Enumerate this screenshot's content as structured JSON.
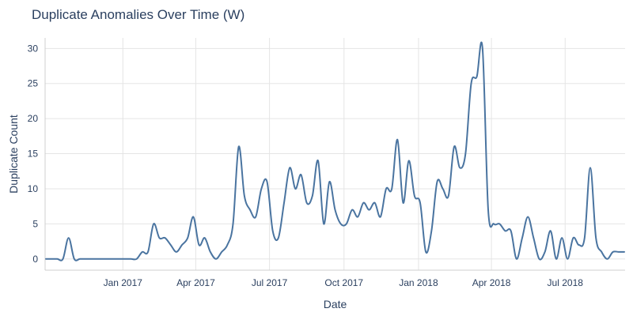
{
  "chart_data": {
    "type": "line",
    "title": "Duplicate Anomalies Over Time (W)",
    "xlabel": "Date",
    "ylabel": "Duplicate Count",
    "x_tick_labels": [
      {
        "date": "2017-01-01",
        "label": "Jan 2017"
      },
      {
        "date": "2017-04-01",
        "label": "Apr 2017"
      },
      {
        "date": "2017-07-01",
        "label": "Jul 2017"
      },
      {
        "date": "2017-10-01",
        "label": "Oct 2017"
      },
      {
        "date": "2018-01-01",
        "label": "Jan 2018"
      },
      {
        "date": "2018-04-01",
        "label": "Apr 2018"
      },
      {
        "date": "2018-07-01",
        "label": "Jul 2018"
      }
    ],
    "y_ticks": [
      0,
      5,
      10,
      15,
      20,
      25,
      30
    ],
    "xlim": [
      "2016-09-27",
      "2018-09-13"
    ],
    "ylim": [
      -1.6,
      31.5
    ],
    "grid": true,
    "series": [
      {
        "color": "#4a74a0",
        "x": [
          "2016-09-28",
          "2016-10-05",
          "2016-10-12",
          "2016-10-19",
          "2016-10-26",
          "2016-11-02",
          "2016-11-09",
          "2016-11-16",
          "2016-11-23",
          "2016-11-30",
          "2016-12-07",
          "2016-12-14",
          "2016-12-21",
          "2016-12-28",
          "2017-01-04",
          "2017-01-11",
          "2017-01-18",
          "2017-01-25",
          "2017-02-01",
          "2017-02-08",
          "2017-02-15",
          "2017-02-22",
          "2017-03-01",
          "2017-03-08",
          "2017-03-15",
          "2017-03-22",
          "2017-03-29",
          "2017-04-05",
          "2017-04-12",
          "2017-04-19",
          "2017-04-26",
          "2017-05-03",
          "2017-05-10",
          "2017-05-17",
          "2017-05-24",
          "2017-05-31",
          "2017-06-07",
          "2017-06-14",
          "2017-06-21",
          "2017-06-28",
          "2017-07-05",
          "2017-07-12",
          "2017-07-19",
          "2017-07-26",
          "2017-08-02",
          "2017-08-09",
          "2017-08-16",
          "2017-08-23",
          "2017-08-30",
          "2017-09-06",
          "2017-09-13",
          "2017-09-20",
          "2017-09-27",
          "2017-10-04",
          "2017-10-11",
          "2017-10-18",
          "2017-10-25",
          "2017-11-01",
          "2017-11-08",
          "2017-11-15",
          "2017-11-22",
          "2017-11-29",
          "2017-12-06",
          "2017-12-13",
          "2017-12-20",
          "2017-12-27",
          "2018-01-03",
          "2018-01-10",
          "2018-01-17",
          "2018-01-24",
          "2018-01-31",
          "2018-02-07",
          "2018-02-14",
          "2018-02-21",
          "2018-02-28",
          "2018-03-07",
          "2018-03-14",
          "2018-03-21",
          "2018-03-28",
          "2018-04-04",
          "2018-04-11",
          "2018-04-18",
          "2018-04-25",
          "2018-05-02",
          "2018-05-09",
          "2018-05-16",
          "2018-05-23",
          "2018-05-30",
          "2018-06-06",
          "2018-06-13",
          "2018-06-20",
          "2018-06-27",
          "2018-07-04",
          "2018-07-11",
          "2018-07-18",
          "2018-07-25",
          "2018-08-01",
          "2018-08-08",
          "2018-08-15",
          "2018-08-22",
          "2018-08-29",
          "2018-09-05",
          "2018-09-12"
        ],
        "values": [
          0,
          0,
          0,
          0,
          3,
          0,
          0,
          0,
          0,
          0,
          0,
          0,
          0,
          0,
          0,
          0,
          0,
          1,
          1,
          5,
          3,
          3,
          2,
          1,
          2,
          3,
          6,
          2,
          3,
          1,
          0,
          1,
          2,
          5,
          16,
          9,
          7,
          6,
          10,
          11,
          4,
          3,
          8,
          13,
          10,
          12,
          8,
          9,
          14,
          5,
          11,
          7,
          5,
          5,
          7,
          6,
          8,
          7,
          8,
          6,
          10,
          10,
          17,
          8,
          14,
          9,
          8,
          1,
          4,
          11,
          10,
          9,
          16,
          13,
          15,
          25,
          26,
          30,
          7,
          5,
          5,
          4,
          4,
          0,
          3,
          6,
          3,
          0,
          1,
          4,
          0,
          3,
          0,
          3,
          2,
          3,
          13,
          3,
          1,
          0,
          1,
          1,
          1
        ]
      }
    ]
  }
}
